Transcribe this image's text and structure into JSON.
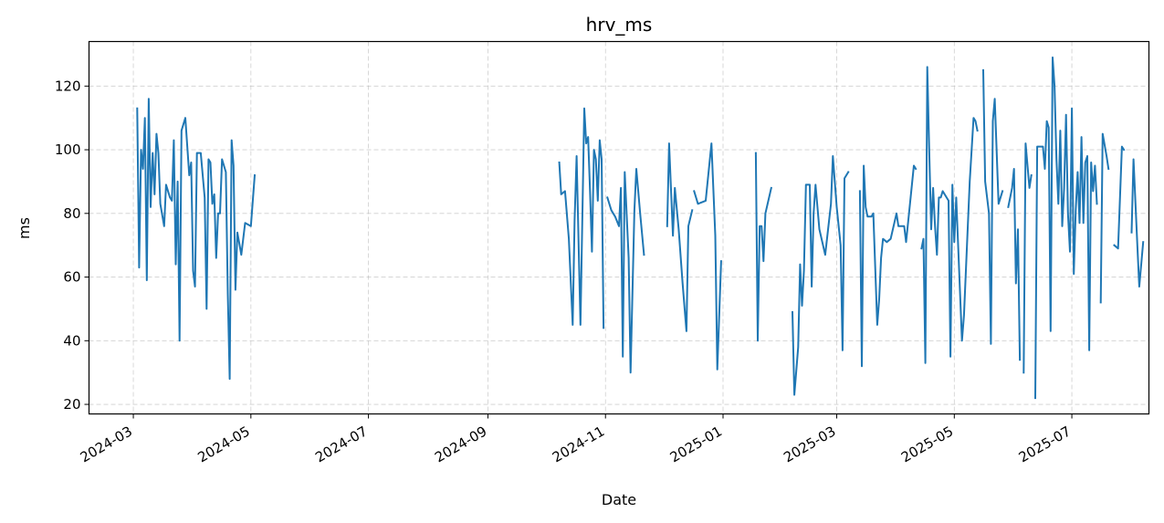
{
  "chart_data": {
    "type": "line",
    "title": "hrv_ms",
    "xlabel": "Date",
    "ylabel": "ms",
    "xlim": [
      "2024-02-07",
      "2025-08-10"
    ],
    "ylim": [
      17,
      134
    ],
    "x_ticks": [
      "2024-03",
      "2024-05",
      "2024-07",
      "2024-09",
      "2024-11",
      "2025-01",
      "2025-03",
      "2025-05",
      "2025-07"
    ],
    "y_ticks": [
      20,
      40,
      60,
      80,
      100,
      120
    ],
    "grid": true,
    "line_color": "#1f77b4",
    "series": [
      {
        "segments": [
          [
            [
              "2024-03-03",
              113
            ],
            [
              "2024-03-04",
              63
            ],
            [
              "2024-03-05",
              100
            ],
            [
              "2024-03-06",
              94
            ],
            [
              "2024-03-07",
              110
            ],
            [
              "2024-03-08",
              59
            ],
            [
              "2024-03-09",
              116
            ],
            [
              "2024-03-10",
              82
            ],
            [
              "2024-03-11",
              99
            ],
            [
              "2024-03-12",
              86
            ],
            [
              "2024-03-13",
              105
            ],
            [
              "2024-03-14",
              99
            ],
            [
              "2024-03-15",
              83
            ],
            [
              "2024-03-17",
              76
            ],
            [
              "2024-03-18",
              89
            ],
            [
              "2024-03-20",
              85
            ],
            [
              "2024-03-21",
              84
            ],
            [
              "2024-03-22",
              103
            ],
            [
              "2024-03-23",
              64
            ],
            [
              "2024-03-24",
              90
            ],
            [
              "2024-03-25",
              40
            ],
            [
              "2024-03-26",
              106
            ],
            [
              "2024-03-28",
              110
            ],
            [
              "2024-03-30",
              92
            ],
            [
              "2024-03-31",
              96
            ],
            [
              "2024-04-01",
              62
            ],
            [
              "2024-04-02",
              57
            ],
            [
              "2024-04-03",
              99
            ],
            [
              "2024-04-05",
              99
            ],
            [
              "2024-04-07",
              85
            ],
            [
              "2024-04-08",
              50
            ],
            [
              "2024-04-09",
              97
            ],
            [
              "2024-04-10",
              96
            ],
            [
              "2024-04-11",
              83
            ],
            [
              "2024-04-12",
              86
            ],
            [
              "2024-04-13",
              66
            ],
            [
              "2024-04-14",
              80
            ],
            [
              "2024-04-15",
              80
            ],
            [
              "2024-04-16",
              97
            ],
            [
              "2024-04-18",
              93
            ],
            [
              "2024-04-19",
              55
            ],
            [
              "2024-04-20",
              28
            ],
            [
              "2024-04-21",
              103
            ],
            [
              "2024-04-22",
              95
            ],
            [
              "2024-04-23",
              56
            ],
            [
              "2024-04-24",
              74
            ],
            [
              "2024-04-26",
              67
            ],
            [
              "2024-04-28",
              77
            ],
            [
              "2024-05-01",
              76
            ],
            [
              "2024-05-03",
              92
            ]
          ],
          [
            [
              "2024-10-08",
              96
            ],
            [
              "2024-10-09",
              86
            ],
            [
              "2024-10-11",
              87
            ],
            [
              "2024-10-13",
              72
            ],
            [
              "2024-10-15",
              45
            ],
            [
              "2024-10-16",
              78
            ],
            [
              "2024-10-17",
              98
            ],
            [
              "2024-10-19",
              45
            ],
            [
              "2024-10-21",
              113
            ],
            [
              "2024-10-22",
              102
            ],
            [
              "2024-10-23",
              104
            ],
            [
              "2024-10-24",
              87
            ],
            [
              "2024-10-25",
              68
            ],
            [
              "2024-10-26",
              100
            ],
            [
              "2024-10-27",
              97
            ],
            [
              "2024-10-28",
              84
            ],
            [
              "2024-10-29",
              103
            ],
            [
              "2024-10-30",
              97
            ],
            [
              "2024-10-31",
              44
            ]
          ],
          [
            [
              "2024-11-02",
              85
            ],
            [
              "2024-11-04",
              81
            ],
            [
              "2024-11-06",
              79
            ],
            [
              "2024-11-08",
              76
            ],
            [
              "2024-11-09",
              88
            ],
            [
              "2024-11-10",
              35
            ],
            [
              "2024-11-11",
              93
            ],
            [
              "2024-11-13",
              66
            ],
            [
              "2024-11-14",
              30
            ],
            [
              "2024-11-16",
              81
            ],
            [
              "2024-11-17",
              94
            ],
            [
              "2024-11-19",
              80
            ],
            [
              "2024-11-21",
              67
            ]
          ],
          [
            [
              "2024-12-03",
              76
            ],
            [
              "2024-12-04",
              102
            ],
            [
              "2024-12-06",
              73
            ],
            [
              "2024-12-07",
              88
            ],
            [
              "2024-12-09",
              75
            ],
            [
              "2024-12-11",
              58
            ],
            [
              "2024-12-13",
              43
            ],
            [
              "2024-12-14",
              76
            ],
            [
              "2024-12-16",
              81
            ]
          ],
          [
            [
              "2024-12-17",
              87
            ],
            [
              "2024-12-19",
              83
            ],
            [
              "2024-12-23",
              84
            ],
            [
              "2024-12-26",
              102
            ],
            [
              "2024-12-28",
              73
            ],
            [
              "2024-12-29",
              31
            ],
            [
              "2024-12-31",
              65
            ]
          ],
          [
            [
              "2025-01-18",
              99
            ],
            [
              "2025-01-19",
              40
            ],
            [
              "2025-01-20",
              76
            ],
            [
              "2025-01-21",
              76
            ],
            [
              "2025-01-22",
              65
            ],
            [
              "2025-01-23",
              80
            ],
            [
              "2025-01-26",
              88
            ]
          ],
          [
            [
              "2025-02-06",
              49
            ],
            [
              "2025-02-07",
              23
            ],
            [
              "2025-02-09",
              38
            ],
            [
              "2025-02-10",
              64
            ],
            [
              "2025-02-11",
              51
            ],
            [
              "2025-02-12",
              62
            ],
            [
              "2025-02-13",
              89
            ],
            [
              "2025-02-15",
              89
            ],
            [
              "2025-02-16",
              57
            ],
            [
              "2025-02-17",
              80
            ],
            [
              "2025-02-18",
              89
            ],
            [
              "2025-02-20",
              75
            ],
            [
              "2025-02-23",
              67
            ],
            [
              "2025-02-26",
              83
            ],
            [
              "2025-02-27",
              98
            ],
            [
              "2025-03-01",
              82
            ],
            [
              "2025-03-03",
              70
            ],
            [
              "2025-03-04",
              37
            ],
            [
              "2025-03-05",
              91
            ],
            [
              "2025-03-07",
              93
            ]
          ],
          [
            [
              "2025-03-13",
              87
            ],
            [
              "2025-03-14",
              32
            ],
            [
              "2025-03-15",
              95
            ],
            [
              "2025-03-16",
              82
            ],
            [
              "2025-03-17",
              79
            ],
            [
              "2025-03-19",
              79
            ],
            [
              "2025-03-20",
              80
            ],
            [
              "2025-03-22",
              45
            ],
            [
              "2025-03-23",
              53
            ],
            [
              "2025-03-24",
              66
            ],
            [
              "2025-03-25",
              72
            ],
            [
              "2025-03-27",
              71
            ],
            [
              "2025-03-29",
              72
            ],
            [
              "2025-04-01",
              80
            ],
            [
              "2025-04-02",
              76
            ],
            [
              "2025-04-05",
              76
            ],
            [
              "2025-04-06",
              71
            ],
            [
              "2025-04-10",
              95
            ],
            [
              "2025-04-11",
              94
            ]
          ],
          [
            [
              "2025-04-14",
              69
            ],
            [
              "2025-04-15",
              72
            ],
            [
              "2025-04-16",
              33
            ],
            [
              "2025-04-17",
              126
            ],
            [
              "2025-04-18",
              99
            ],
            [
              "2025-04-19",
              75
            ],
            [
              "2025-04-20",
              88
            ],
            [
              "2025-04-21",
              76
            ],
            [
              "2025-04-22",
              67
            ],
            [
              "2025-04-23",
              85
            ],
            [
              "2025-04-24",
              85
            ],
            [
              "2025-04-25",
              87
            ],
            [
              "2025-04-28",
              84
            ],
            [
              "2025-04-29",
              35
            ],
            [
              "2025-04-30",
              89
            ],
            [
              "2025-05-01",
              71
            ],
            [
              "2025-05-02",
              85
            ],
            [
              "2025-05-05",
              40
            ],
            [
              "2025-05-06",
              48
            ],
            [
              "2025-05-09",
              90
            ],
            [
              "2025-05-11",
              110
            ],
            [
              "2025-05-12",
              109
            ],
            [
              "2025-05-13",
              106
            ]
          ],
          [
            [
              "2025-05-16",
              125
            ],
            [
              "2025-05-17",
              90
            ],
            [
              "2025-05-19",
              80
            ],
            [
              "2025-05-20",
              39
            ],
            [
              "2025-05-21",
              109
            ],
            [
              "2025-05-22",
              116
            ],
            [
              "2025-05-24",
              83
            ],
            [
              "2025-05-26",
              87
            ]
          ],
          [
            [
              "2025-05-29",
              82
            ],
            [
              "2025-05-31",
              88
            ],
            [
              "2025-06-01",
              94
            ],
            [
              "2025-06-02",
              58
            ],
            [
              "2025-06-03",
              75
            ],
            [
              "2025-06-04",
              34
            ]
          ],
          [
            [
              "2025-06-06",
              30
            ],
            [
              "2025-06-07",
              102
            ],
            [
              "2025-06-09",
              88
            ],
            [
              "2025-06-10",
              92
            ]
          ],
          [
            [
              "2025-06-12",
              22
            ],
            [
              "2025-06-13",
              101
            ],
            [
              "2025-06-16",
              101
            ],
            [
              "2025-06-17",
              94
            ],
            [
              "2025-06-18",
              109
            ],
            [
              "2025-06-19",
              107
            ],
            [
              "2025-06-20",
              43
            ],
            [
              "2025-06-21",
              129
            ],
            [
              "2025-06-22",
              120
            ],
            [
              "2025-06-23",
              97
            ],
            [
              "2025-06-24",
              83
            ],
            [
              "2025-06-25",
              106
            ],
            [
              "2025-06-26",
              76
            ],
            [
              "2025-06-27",
              88
            ],
            [
              "2025-06-28",
              111
            ],
            [
              "2025-06-29",
              80
            ],
            [
              "2025-06-30",
              68
            ],
            [
              "2025-07-01",
              113
            ],
            [
              "2025-07-02",
              61
            ],
            [
              "2025-07-03",
              81
            ],
            [
              "2025-07-04",
              93
            ],
            [
              "2025-07-05",
              77
            ],
            [
              "2025-07-06",
              104
            ],
            [
              "2025-07-07",
              77
            ],
            [
              "2025-07-08",
              96
            ],
            [
              "2025-07-09",
              98
            ],
            [
              "2025-07-10",
              37
            ],
            [
              "2025-07-11",
              96
            ],
            [
              "2025-07-12",
              87
            ],
            [
              "2025-07-13",
              95
            ],
            [
              "2025-07-14",
              83
            ]
          ],
          [
            [
              "2025-07-16",
              52
            ],
            [
              "2025-07-17",
              105
            ],
            [
              "2025-07-19",
              98
            ],
            [
              "2025-07-20",
              94
            ]
          ],
          [
            [
              "2025-07-23",
              70
            ],
            [
              "2025-07-25",
              69
            ],
            [
              "2025-07-27",
              101
            ],
            [
              "2025-07-28",
              100
            ]
          ],
          [
            [
              "2025-08-01",
              74
            ],
            [
              "2025-08-02",
              97
            ],
            [
              "2025-08-04",
              70
            ],
            [
              "2025-08-05",
              57
            ],
            [
              "2025-08-07",
              71
            ]
          ]
        ]
      }
    ]
  }
}
